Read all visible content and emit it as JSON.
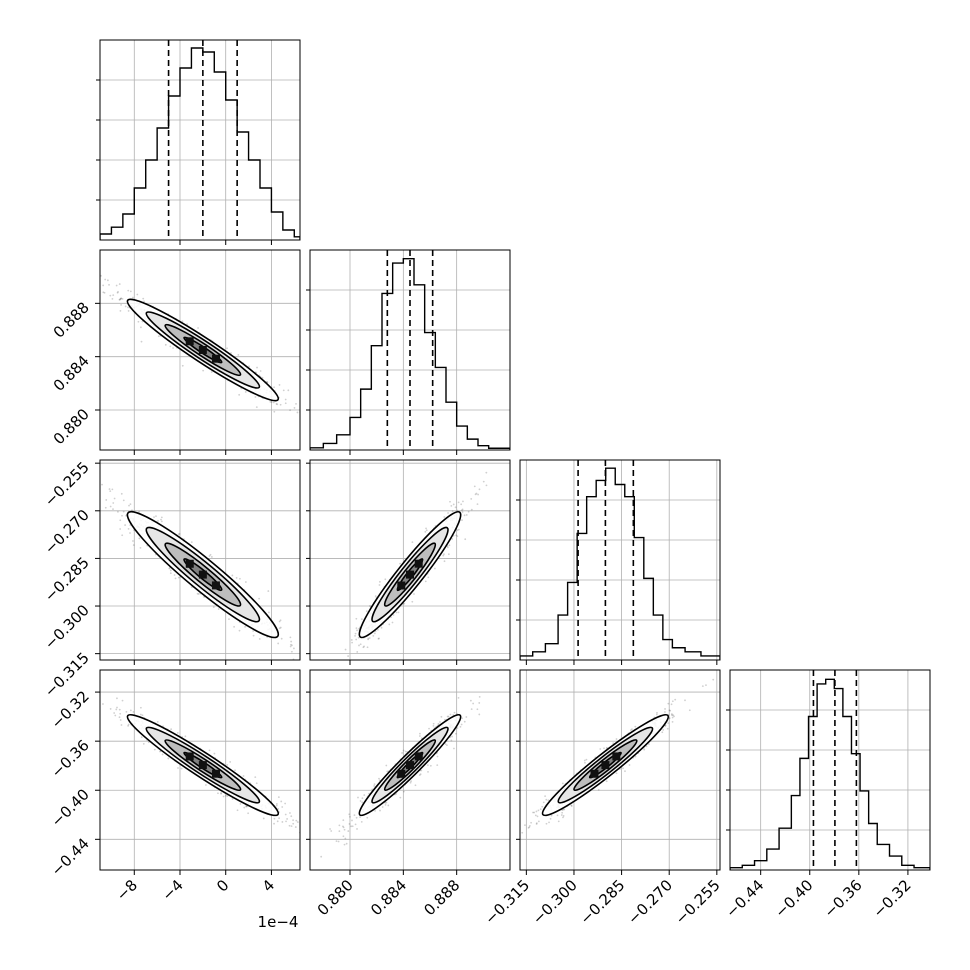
{
  "chart_data": {
    "type": "corner",
    "description_free": true,
    "offset_label": "1e−4",
    "colors": {
      "hist": "#000000",
      "grid": "#b0b0b0",
      "points": "#555555",
      "quantile": "#000000"
    },
    "params": [
      {
        "range": [
          -11,
          6.5
        ],
        "ticks": [
          -8,
          -4,
          0,
          4
        ],
        "tick_labels": [
          "−8",
          "−4",
          "0",
          "4"
        ],
        "quantiles": [
          -5.0,
          -2.0,
          1.0
        ],
        "hist_edges": [
          -11,
          -10,
          -9,
          -8,
          -7,
          -6,
          -5,
          -4,
          -3,
          -2,
          -1,
          0,
          1,
          2,
          3,
          4,
          5,
          6,
          6.5
        ],
        "hist_counts": [
          1.5,
          3.2,
          6.5,
          13,
          20,
          28,
          36,
          43,
          48,
          47,
          42,
          35,
          27,
          20,
          13,
          7,
          2.5,
          0.8
        ],
        "hist_ymax": 50
      },
      {
        "range": [
          0.877,
          0.892
        ],
        "ticks": [
          0.88,
          0.884,
          0.888
        ],
        "tick_labels": [
          "0.880",
          "0.884",
          "0.888"
        ],
        "quantiles": [
          0.8828,
          0.8845,
          0.8862
        ],
        "hist_edges": [
          0.877,
          0.878,
          0.879,
          0.88,
          0.8808,
          0.8816,
          0.8824,
          0.8832,
          0.884,
          0.8848,
          0.8856,
          0.8864,
          0.8872,
          0.888,
          0.8888,
          0.8896,
          0.8904,
          0.892
        ],
        "hist_counts": [
          0.5,
          1.5,
          3.5,
          7.5,
          14,
          24,
          36,
          43,
          44,
          38,
          27,
          19,
          11,
          5.5,
          2.5,
          1.0,
          0.4
        ],
        "hist_ymax": 46
      },
      {
        "range": [
          -0.317,
          -0.254
        ],
        "ticks": [
          -0.315,
          -0.3,
          -0.285,
          -0.27,
          -0.255
        ],
        "tick_labels": [
          "−0.315",
          "−0.300",
          "−0.285",
          "−0.270",
          "−0.255"
        ],
        "quantiles": [
          -0.2987,
          -0.2901,
          -0.2813
        ],
        "hist_edges": [
          -0.317,
          -0.313,
          -0.309,
          -0.305,
          -0.302,
          -0.299,
          -0.296,
          -0.293,
          -0.29,
          -0.287,
          -0.284,
          -0.281,
          -0.278,
          -0.275,
          -0.272,
          -0.269,
          -0.265,
          -0.26,
          -0.254
        ],
        "hist_counts": [
          1.0,
          2.0,
          4.0,
          11,
          19,
          31,
          40,
          44,
          47,
          43,
          40,
          30,
          20,
          11,
          5,
          3,
          2,
          1
        ],
        "hist_ymax": 49
      },
      {
        "range": [
          -0.465,
          -0.302
        ],
        "ticks": [
          -0.44,
          -0.4,
          -0.36,
          -0.32
        ],
        "tick_labels": [
          "−0.44",
          "−0.40",
          "−0.36",
          "−0.32"
        ],
        "quantiles": [
          -0.397,
          -0.3795,
          -0.362
        ],
        "hist_edges": [
          -0.465,
          -0.455,
          -0.445,
          -0.435,
          -0.425,
          -0.415,
          -0.408,
          -0.401,
          -0.394,
          -0.387,
          -0.38,
          -0.373,
          -0.366,
          -0.359,
          -0.352,
          -0.345,
          -0.335,
          -0.325,
          -0.315,
          -0.302
        ],
        "hist_counts": [
          0.5,
          1.0,
          2.0,
          4.5,
          9.0,
          16,
          24,
          33,
          40,
          41,
          39,
          33,
          25,
          17,
          10,
          5.5,
          3.0,
          1.0,
          0.5
        ],
        "hist_ymax": 43
      }
    ],
    "correlations": [
      [
        1.0,
        -0.96,
        -0.95,
        -0.96
      ],
      [
        -0.96,
        1.0,
        0.95,
        0.96
      ],
      [
        -0.95,
        0.95,
        1.0,
        0.96
      ],
      [
        -0.96,
        0.96,
        0.96,
        1.0
      ]
    ],
    "sigmas": [
      3.3,
      0.0019,
      0.0099,
      0.0205
    ],
    "means": [
      -2.0,
      0.8845,
      -0.2901,
      -0.3795
    ],
    "grid": true,
    "contour_levels_sigma": [
      0.5,
      1.0,
      1.5,
      2.0
    ]
  }
}
